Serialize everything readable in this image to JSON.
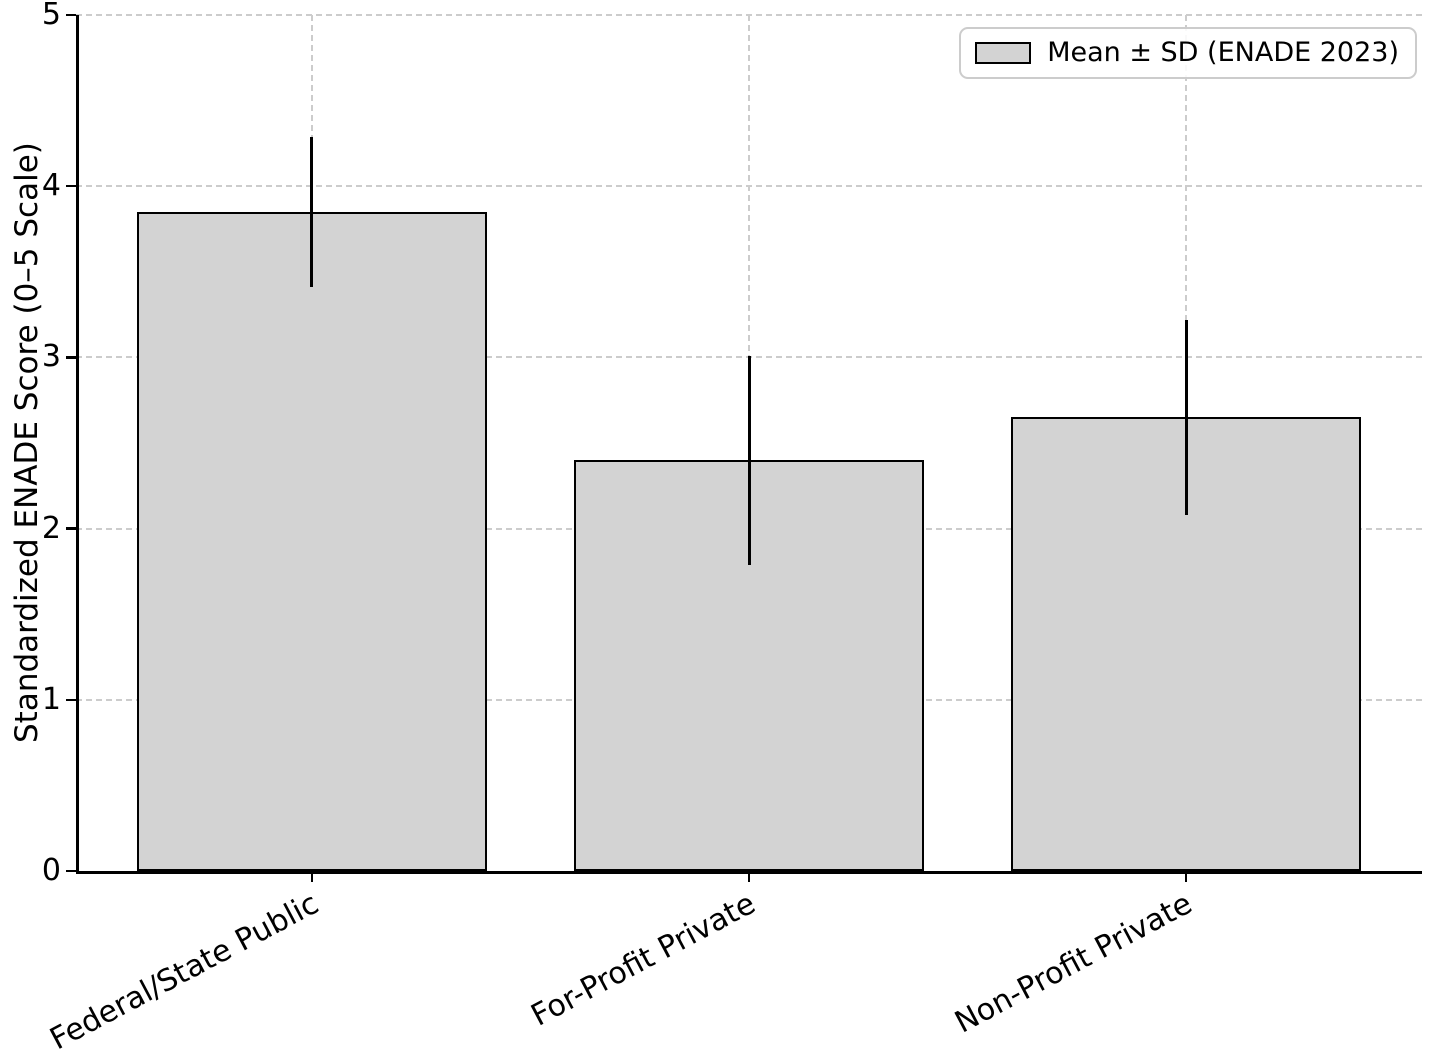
{
  "chart_data": {
    "type": "bar",
    "title": "",
    "categories": [
      "Federal/State Public",
      "For-Profit Private",
      "Non-Profit Private"
    ],
    "values": [
      3.85,
      2.4,
      2.65
    ],
    "errors": [
      0.44,
      0.61,
      0.57
    ],
    "series_name": "Mean ± SD (ENADE 2023)",
    "xlabel": "",
    "ylabel": "Standardized ENADE Score (0–5 Scale)",
    "ylim": [
      0,
      5
    ],
    "yticks": [
      0,
      1,
      2,
      3,
      4,
      5
    ],
    "grid": true,
    "legend": {
      "label": "Mean ± SD (ENADE 2023)",
      "position": "upper-right"
    },
    "colors": {
      "bar_fill": "#d3d3d3",
      "bar_edge": "#000000",
      "error_bar": "#000000",
      "grid": "#cccccc",
      "axis": "#000000",
      "legend_border": "#cccccc"
    },
    "x_tick_rotation_deg": 28,
    "bar_width_fraction": 0.8
  }
}
